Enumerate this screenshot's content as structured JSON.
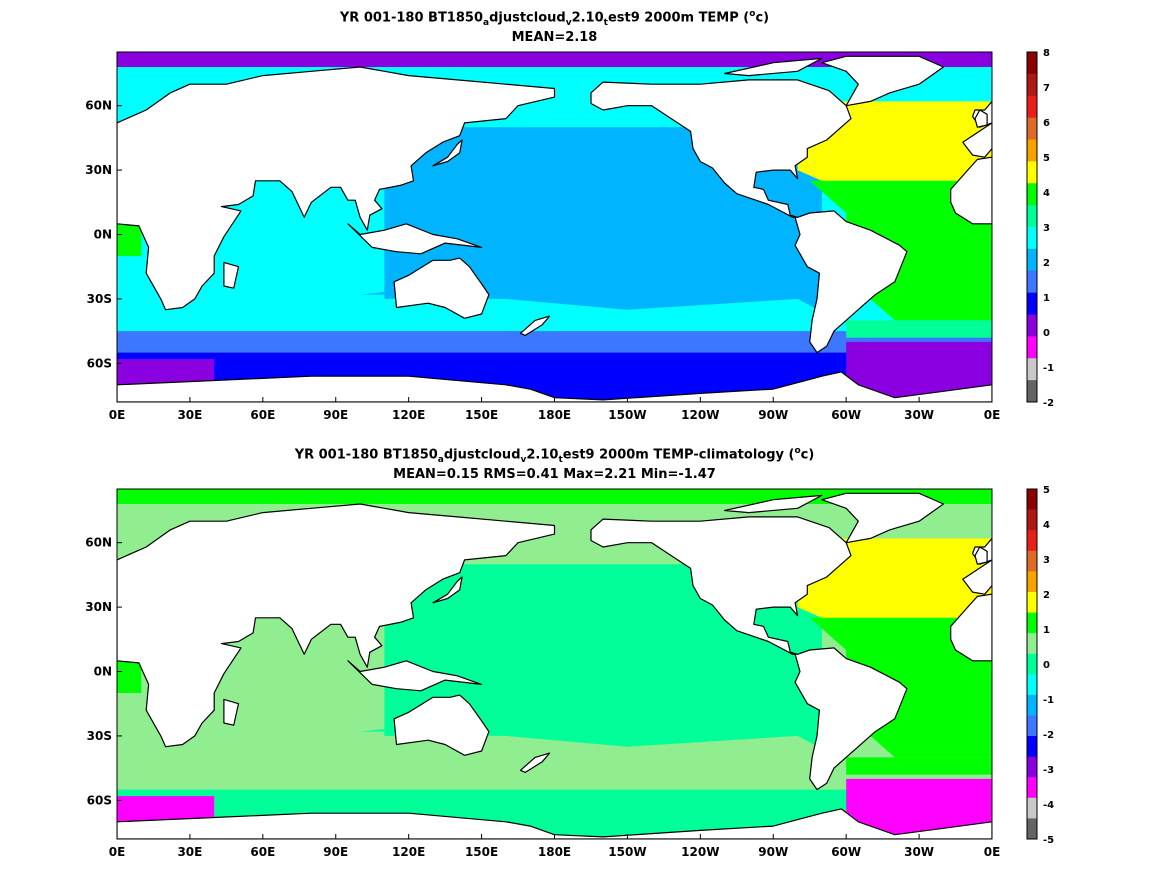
{
  "panels": [
    {
      "title_parts": [
        "YR 001-180 BT1850",
        "a",
        "djustcloud",
        "v",
        "2.10",
        "t",
        "est9 2000m TEMP (",
        "o",
        "c)"
      ],
      "subtitle": "MEAN=2.18",
      "x_ticks": [
        "0E",
        "30E",
        "60E",
        "90E",
        "120E",
        "150E",
        "180E",
        "150W",
        "120W",
        "90W",
        "60W",
        "30W",
        "0E"
      ],
      "y_ticks": [
        "60N",
        "30N",
        "0N",
        "30S",
        "60S"
      ],
      "colorbar": {
        "labels": [
          "8",
          "7",
          "6",
          "5",
          "4",
          "3",
          "2",
          "1",
          "0",
          "-1",
          "-2"
        ],
        "colors": [
          "#8b0000",
          "#b01818",
          "#e8201a",
          "#e06a28",
          "#f5a300",
          "#ffff00",
          "#00ff00",
          "#00ff99",
          "#00ffff",
          "#00b4ff",
          "#3c78ff",
          "#0000ff",
          "#8a00e0",
          "#ff00ff",
          "#c8c8c8",
          "#646464"
        ]
      }
    },
    {
      "title_parts": [
        "YR 001-180 BT1850",
        "a",
        "djustcloud",
        "v",
        "2.10",
        "t",
        "est9 2000m TEMP-climatology (",
        "o",
        "c)"
      ],
      "subtitle": "MEAN=0.15   RMS=0.41   Max=2.21   Min=-1.47",
      "x_ticks": [
        "0E",
        "30E",
        "60E",
        "90E",
        "120E",
        "150E",
        "180E",
        "150W",
        "120W",
        "90W",
        "60W",
        "30W",
        "0E"
      ],
      "y_ticks": [
        "60N",
        "30N",
        "0N",
        "30S",
        "60S"
      ],
      "colorbar": {
        "labels": [
          "5",
          "4",
          "3",
          "2",
          "1",
          "0",
          "-1",
          "-2",
          "-3",
          "-4",
          "-5"
        ],
        "colors": [
          "#8b0000",
          "#b01818",
          "#e8201a",
          "#e06a28",
          "#f5a300",
          "#ffff00",
          "#00ff00",
          "#90ee90",
          "#00ff99",
          "#00ffff",
          "#00b4ff",
          "#3c78ff",
          "#0000ff",
          "#8a00e0",
          "#ff00ff",
          "#c8c8c8",
          "#646464"
        ]
      }
    }
  ],
  "map_colors": {
    "land": "#ffffff",
    "coast": "#000000",
    "top": {
      "arctic": "#8a00e0",
      "pacific": "#00b4ff",
      "indian": "#00ffff",
      "south_a": "#3c78ff",
      "south_b": "#0000ff",
      "atl_north": "#ffff00",
      "atl_mid": "#00ff00",
      "atl_south": "#00ff99",
      "weddell": "#8a00e0"
    },
    "bottom": {
      "arctic": "#00ff00",
      "pacific": "#00ff99",
      "indian": "#90ee90",
      "south_a": "#90ee90",
      "south_b": "#00ff99",
      "atl_north": "#ffff00",
      "atl_mid": "#00ff00",
      "atl_south": "#00ff00",
      "weddell": "#ff00ff"
    }
  }
}
